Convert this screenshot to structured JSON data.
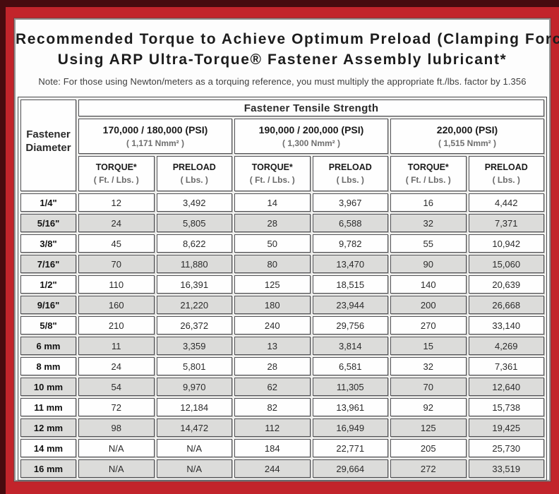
{
  "header": {
    "title_line1": "Recommended Torque to Achieve Optimum Preload (Clamping Force)",
    "title_line2": "Using ARP Ultra-Torque® Fastener Assembly lubricant*",
    "note": "Note: For those using Newton/meters as a torquing reference, you must multiply the appropriate ft./lbs. factor by 1.356"
  },
  "table": {
    "tensile_strength_header": "Fastener Tensile Strength",
    "diameter_header_line1": "Fastener",
    "diameter_header_line2": "Diameter",
    "psi_groups": [
      {
        "psi": "170,000 / 180,000 (PSI)",
        "nmm": "( 1,171 Nmm² )"
      },
      {
        "psi": "190,000 / 200,000 (PSI)",
        "nmm": "( 1,300 Nmm² )"
      },
      {
        "psi": "220,000 (PSI)",
        "nmm": "( 1,515 Nmm² )"
      }
    ],
    "column_headers": [
      {
        "label": "TORQUE*",
        "unit": "( Ft. / Lbs. )"
      },
      {
        "label": "PRELOAD",
        "unit": "( Lbs. )"
      }
    ],
    "rows": [
      {
        "diameter": "1/4\"",
        "values": [
          "12",
          "3,492",
          "14",
          "3,967",
          "16",
          "4,442"
        ]
      },
      {
        "diameter": "5/16\"",
        "values": [
          "24",
          "5,805",
          "28",
          "6,588",
          "32",
          "7,371"
        ]
      },
      {
        "diameter": "3/8\"",
        "values": [
          "45",
          "8,622",
          "50",
          "9,782",
          "55",
          "10,942"
        ]
      },
      {
        "diameter": "7/16\"",
        "values": [
          "70",
          "11,880",
          "80",
          "13,470",
          "90",
          "15,060"
        ]
      },
      {
        "diameter": "1/2\"",
        "values": [
          "110",
          "16,391",
          "125",
          "18,515",
          "140",
          "20,639"
        ]
      },
      {
        "diameter": "9/16\"",
        "values": [
          "160",
          "21,220",
          "180",
          "23,944",
          "200",
          "26,668"
        ]
      },
      {
        "diameter": "5/8\"",
        "values": [
          "210",
          "26,372",
          "240",
          "29,756",
          "270",
          "33,140"
        ]
      },
      {
        "diameter": "6 mm",
        "values": [
          "11",
          "3,359",
          "13",
          "3,814",
          "15",
          "4,269"
        ]
      },
      {
        "diameter": "8 mm",
        "values": [
          "24",
          "5,801",
          "28",
          "6,581",
          "32",
          "7,361"
        ]
      },
      {
        "diameter": "10 mm",
        "values": [
          "54",
          "9,970",
          "62",
          "11,305",
          "70",
          "12,640"
        ]
      },
      {
        "diameter": "11 mm",
        "values": [
          "72",
          "12,184",
          "82",
          "13,961",
          "92",
          "15,738"
        ]
      },
      {
        "diameter": "12 mm",
        "values": [
          "98",
          "14,472",
          "112",
          "16,949",
          "125",
          "19,425"
        ]
      },
      {
        "diameter": "14 mm",
        "values": [
          "N/A",
          "N/A",
          "184",
          "22,771",
          "205",
          "25,730"
        ]
      },
      {
        "diameter": "16 mm",
        "values": [
          "N/A",
          "N/A",
          "244",
          "29,664",
          "272",
          "33,519"
        ]
      }
    ]
  },
  "colors": {
    "frame_red": "#c2242b",
    "frame_dark_shadow": "#470b0f",
    "header_cell_gray": "#cbcbc9",
    "stripe_row_gray": "#dcdcda",
    "cell_white": "#fefefe",
    "cell_border": "#505054"
  }
}
